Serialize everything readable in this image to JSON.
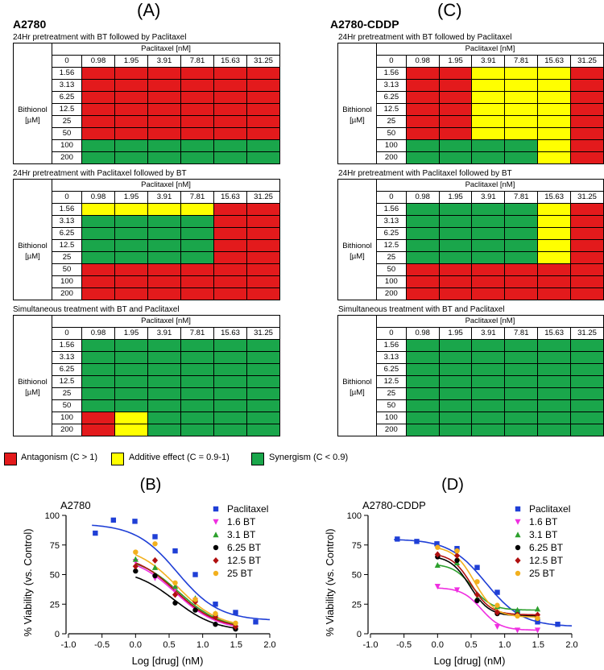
{
  "panels": [
    {
      "label": "(A)",
      "cell_line": "A2780"
    },
    {
      "label": "(C)",
      "cell_line": "A2780-CDDP"
    }
  ],
  "table_header": {
    "paclitaxel": "Paclitaxel [nM]",
    "bithionol_line1": "Bithionol",
    "bithionol_line2": "[µM]"
  },
  "pac_doses": [
    "0",
    "0.98",
    "1.95",
    "3.91",
    "7.81",
    "15.63",
    "31.25"
  ],
  "bt_doses": [
    "1.56",
    "3.13",
    "6.25",
    "12.5",
    "25",
    "50",
    "100",
    "200"
  ],
  "treatments": [
    "24Hr pretreatment with BT followed by Paclitaxel",
    "24Hr pretreatment with Paclitaxel followed by BT",
    "Simultaneous treatment with BT and Paclitaxel"
  ],
  "colors": {
    "R": "#e31a1c",
    "Y": "#ffff00",
    "G": "#1aa64b"
  },
  "grids": {
    "A": [
      [
        "RRRRRR",
        "RRRRRR",
        "RRRRRR",
        "RRRRRR",
        "RRRRRR",
        "RRRRRR",
        "GGGGGG",
        "GGGGGG"
      ],
      [
        "YYYYRR",
        "GGGGRR",
        "GGGGRR",
        "GGGGRR",
        "GGGGRR",
        "RRRRRR",
        "RRRRRR",
        "RRRRRR"
      ],
      [
        "GGGGGG",
        "GGGGGG",
        "GGGGGG",
        "GGGGGG",
        "GGGGGG",
        "GGGGGG",
        "RYGGGG",
        "RYGGGG"
      ]
    ],
    "C": [
      [
        "RRYYYR",
        "RRYYYR",
        "RRYYYR",
        "RRYYYR",
        "RRYYYR",
        "RRYYYR",
        "GGGGYR",
        "GGGGYR"
      ],
      [
        "GGGGYR",
        "GGGGYR",
        "GGGGYR",
        "GGGGYR",
        "GGGGYR",
        "RRRRRR",
        "RRRRRR",
        "RRRRRR"
      ],
      [
        "GGGGGG",
        "GGGGGG",
        "GGGGGG",
        "GGGGGG",
        "GGGGGG",
        "GGGGGG",
        "GGGGGG",
        "GGGGGG"
      ]
    ]
  },
  "legend": [
    {
      "key": "R",
      "label": "Antagonism (C > 1)"
    },
    {
      "key": "Y",
      "label": "Additive effect (C = 0.9-1)"
    },
    {
      "key": "G",
      "label": "Synergism (C < 0.9)"
    }
  ],
  "chart_data": [
    {
      "type": "scatter",
      "label": "(B)",
      "title": "A2780",
      "xlabel": "Log [drug] (nM)",
      "ylabel": "% Viability (vs. Control)",
      "xlim": [
        -1.0,
        2.0
      ],
      "ylim": [
        0,
        100
      ],
      "xticks": [
        "-1.0",
        "-0.5",
        "0.0",
        "0.5",
        "1.0",
        "1.5",
        "2.0"
      ],
      "yticks": [
        "0",
        "25",
        "50",
        "75",
        "100"
      ],
      "series": [
        {
          "name": "Paclitaxel",
          "marker": "square",
          "color": "#1f3fd6",
          "x": [
            -0.6,
            -0.33,
            -0.01,
            0.29,
            0.59,
            0.89,
            1.19,
            1.49,
            1.79
          ],
          "y": [
            85,
            96,
            95,
            82,
            70,
            50,
            25,
            18,
            10
          ],
          "fit": {
            "top": 93,
            "bottom": 11,
            "ec50": 0.62,
            "slope": 1.4
          }
        },
        {
          "name": "1.6 BT",
          "marker": "tri-down",
          "color": "#ef2fe0",
          "x": [
            0.0,
            0.29,
            0.59,
            0.89,
            1.19,
            1.49
          ],
          "y": [
            61,
            47,
            38,
            28,
            14,
            5
          ],
          "fit": {
            "top": 66,
            "bottom": 3,
            "ec50": 0.6,
            "slope": 1.4
          }
        },
        {
          "name": "3.1 BT",
          "marker": "tri-up",
          "color": "#2ca02c",
          "x": [
            0.0,
            0.29,
            0.59,
            0.89,
            1.19,
            1.49
          ],
          "y": [
            63,
            56,
            40,
            30,
            17,
            8
          ],
          "fit": {
            "top": 66,
            "bottom": 4,
            "ec50": 0.65,
            "slope": 1.4
          }
        },
        {
          "name": "6.25 BT",
          "marker": "circle",
          "color": "#000000",
          "x": [
            0.0,
            0.29,
            0.59,
            0.89,
            1.19,
            1.49
          ],
          "y": [
            53,
            49,
            26,
            20,
            8,
            4
          ],
          "fit": {
            "top": 55,
            "bottom": 2,
            "ec50": 0.58,
            "slope": 1.4
          }
        },
        {
          "name": "12.5 BT",
          "marker": "diamond",
          "color": "#b01010",
          "x": [
            0.0,
            0.29,
            0.59,
            0.89,
            1.19,
            1.49
          ],
          "y": [
            57,
            62,
            33,
            27,
            14,
            6
          ],
          "fit": {
            "top": 68,
            "bottom": 4,
            "ec50": 0.6,
            "slope": 1.4
          }
        },
        {
          "name": "25 BT",
          "marker": "circle",
          "color": "#f2b01e",
          "x": [
            0.0,
            0.29,
            0.59,
            0.89,
            1.19,
            1.49
          ],
          "y": [
            69,
            76,
            43,
            29,
            17,
            9
          ],
          "fit": {
            "top": 75,
            "bottom": 5,
            "ec50": 0.62,
            "slope": 1.4
          }
        }
      ]
    },
    {
      "type": "scatter",
      "label": "(D)",
      "title": "A2780-CDDP",
      "xlabel": "Log [drug] (nM)",
      "ylabel": "% Viability (vs. Control)",
      "xlim": [
        -1.0,
        2.0
      ],
      "ylim": [
        0,
        100
      ],
      "xticks": [
        "-1.0",
        "-0.5",
        "0.0",
        "0.5",
        "1.0",
        "1.5",
        "2.0"
      ],
      "yticks": [
        "0",
        "25",
        "50",
        "75",
        "100"
      ],
      "series": [
        {
          "name": "Paclitaxel",
          "marker": "square",
          "color": "#1f3fd6",
          "x": [
            -0.6,
            -0.31,
            -0.01,
            0.29,
            0.59,
            0.89,
            1.19,
            1.49,
            1.79
          ],
          "y": [
            80,
            78,
            76,
            72,
            56,
            35,
            18,
            10,
            8
          ],
          "fit": {
            "top": 80,
            "bottom": 6,
            "ec50": 0.72,
            "slope": 1.6
          }
        },
        {
          "name": "1.6 BT",
          "marker": "tri-down",
          "color": "#ef2fe0",
          "x": [
            0.0,
            0.29,
            0.59,
            0.89,
            1.19,
            1.49
          ],
          "y": [
            40,
            37,
            27,
            6,
            3,
            3
          ],
          "fit": {
            "top": 39,
            "bottom": 3,
            "ec50": 0.65,
            "slope": 3.0
          }
        },
        {
          "name": "3.1 BT",
          "marker": "tri-up",
          "color": "#2ca02c",
          "x": [
            0.0,
            0.29,
            0.59,
            0.89,
            1.19,
            1.49
          ],
          "y": [
            58,
            60,
            30,
            23,
            20,
            21
          ],
          "fit": {
            "top": 59,
            "bottom": 20,
            "ec50": 0.52,
            "slope": 3.0
          }
        },
        {
          "name": "6.25 BT",
          "marker": "circle",
          "color": "#000000",
          "x": [
            0.0,
            0.29,
            0.59,
            0.89,
            1.19,
            1.49
          ],
          "y": [
            65,
            62,
            28,
            17,
            16,
            13
          ],
          "fit": {
            "top": 66,
            "bottom": 15,
            "ec50": 0.48,
            "slope": 3.0
          }
        },
        {
          "name": "12.5 BT",
          "marker": "diamond",
          "color": "#b01010",
          "x": [
            0.0,
            0.29,
            0.59,
            0.89,
            1.19,
            1.49
          ],
          "y": [
            67,
            66,
            33,
            18,
            16,
            16
          ],
          "fit": {
            "top": 68,
            "bottom": 16,
            "ec50": 0.5,
            "slope": 3.0
          }
        },
        {
          "name": "25 BT",
          "marker": "circle",
          "color": "#f2b01e",
          "x": [
            0.0,
            0.29,
            0.59,
            0.89,
            1.19,
            1.49
          ],
          "y": [
            73,
            70,
            44,
            24,
            15,
            13
          ],
          "fit": {
            "top": 74,
            "bottom": 14,
            "ec50": 0.55,
            "slope": 2.8
          }
        }
      ]
    }
  ]
}
